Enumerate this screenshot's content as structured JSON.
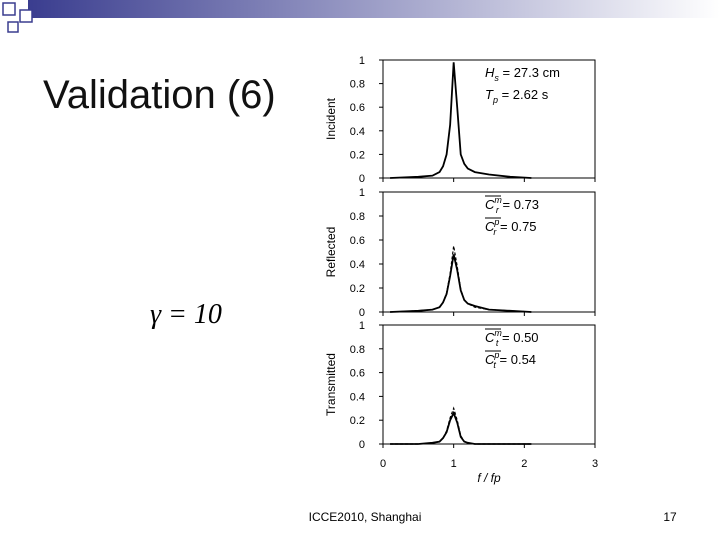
{
  "slide": {
    "title": "Validation (6)",
    "formula": "γ = 10",
    "footer": "ICCE2010, Shanghai",
    "page": "17"
  },
  "chart_data": [
    {
      "type": "line",
      "ylabel": "Incident",
      "xlim": [
        0,
        3
      ],
      "xticks": [
        0,
        1,
        2,
        3
      ],
      "show_xtick_labels": false,
      "ylim": [
        0,
        1
      ],
      "yticks": [
        0,
        0.2,
        0.4,
        0.6,
        0.8,
        1
      ],
      "x": [
        0.1,
        0.5,
        0.7,
        0.8,
        0.85,
        0.9,
        0.95,
        1.0,
        1.05,
        1.1,
        1.15,
        1.2,
        1.3,
        1.5,
        1.8,
        2.1
      ],
      "series": [
        {
          "color": "#000000",
          "dash": false,
          "values": [
            0,
            0.01,
            0.02,
            0.05,
            0.1,
            0.2,
            0.45,
            0.98,
            0.6,
            0.2,
            0.12,
            0.08,
            0.05,
            0.03,
            0.01,
            0
          ]
        }
      ],
      "annotations": [
        {
          "base": "H",
          "sub": "s",
          "rest": " = 27.3 cm"
        },
        {
          "base": "T",
          "sub": "p",
          "rest": " = 2.62 s"
        }
      ]
    },
    {
      "type": "line",
      "ylabel": "Reflected",
      "xlim": [
        0,
        3
      ],
      "xticks": [
        0,
        1,
        2,
        3
      ],
      "show_xtick_labels": false,
      "ylim": [
        0,
        1
      ],
      "yticks": [
        0,
        0.2,
        0.4,
        0.6,
        0.8,
        1
      ],
      "x": [
        0.1,
        0.5,
        0.7,
        0.8,
        0.85,
        0.9,
        0.95,
        1.0,
        1.05,
        1.1,
        1.15,
        1.2,
        1.3,
        1.5,
        1.8,
        2.1
      ],
      "series": [
        {
          "color": "#000000",
          "dash": false,
          "values": [
            0,
            0.01,
            0.02,
            0.04,
            0.08,
            0.15,
            0.3,
            0.48,
            0.35,
            0.18,
            0.1,
            0.07,
            0.05,
            0.02,
            0.01,
            0
          ]
        },
        {
          "color": "#000000",
          "dash": true,
          "values": [
            0,
            0.01,
            0.02,
            0.04,
            0.08,
            0.16,
            0.32,
            0.55,
            0.38,
            0.19,
            0.1,
            0.07,
            0.04,
            0.02,
            0.01,
            0
          ]
        }
      ],
      "annotations": [
        {
          "base": "C",
          "sub": "r",
          "sup": "m",
          "rest": " = 0.73"
        },
        {
          "base": "C",
          "sub": "r",
          "sup": "p",
          "rest": " = 0.75"
        }
      ]
    },
    {
      "type": "line",
      "ylabel": "Transmitted",
      "xlim": [
        0,
        3
      ],
      "xticks": [
        0,
        1,
        2,
        3
      ],
      "show_xtick_labels": true,
      "xlabel": "f / fp",
      "ylim": [
        0,
        1
      ],
      "yticks": [
        0,
        0.2,
        0.4,
        0.6,
        0.8,
        1
      ],
      "x": [
        0.1,
        0.5,
        0.7,
        0.8,
        0.85,
        0.9,
        0.95,
        1.0,
        1.05,
        1.1,
        1.15,
        1.2,
        1.3,
        1.5,
        1.8,
        2.1
      ],
      "series": [
        {
          "color": "#000000",
          "dash": false,
          "values": [
            0,
            0,
            0.01,
            0.02,
            0.05,
            0.1,
            0.2,
            0.26,
            0.18,
            0.06,
            0.02,
            0.01,
            0,
            0,
            0,
            0
          ]
        },
        {
          "color": "#000000",
          "dash": true,
          "values": [
            0,
            0,
            0.01,
            0.02,
            0.05,
            0.11,
            0.22,
            0.3,
            0.2,
            0.07,
            0.02,
            0.01,
            0,
            0,
            0,
            0
          ]
        }
      ],
      "annotations": [
        {
          "base": "C",
          "sub": "t",
          "sup": "m",
          "rest": " = 0.50"
        },
        {
          "base": "C",
          "sub": "t",
          "sup": "p",
          "rest": " = 0.54"
        }
      ]
    }
  ]
}
